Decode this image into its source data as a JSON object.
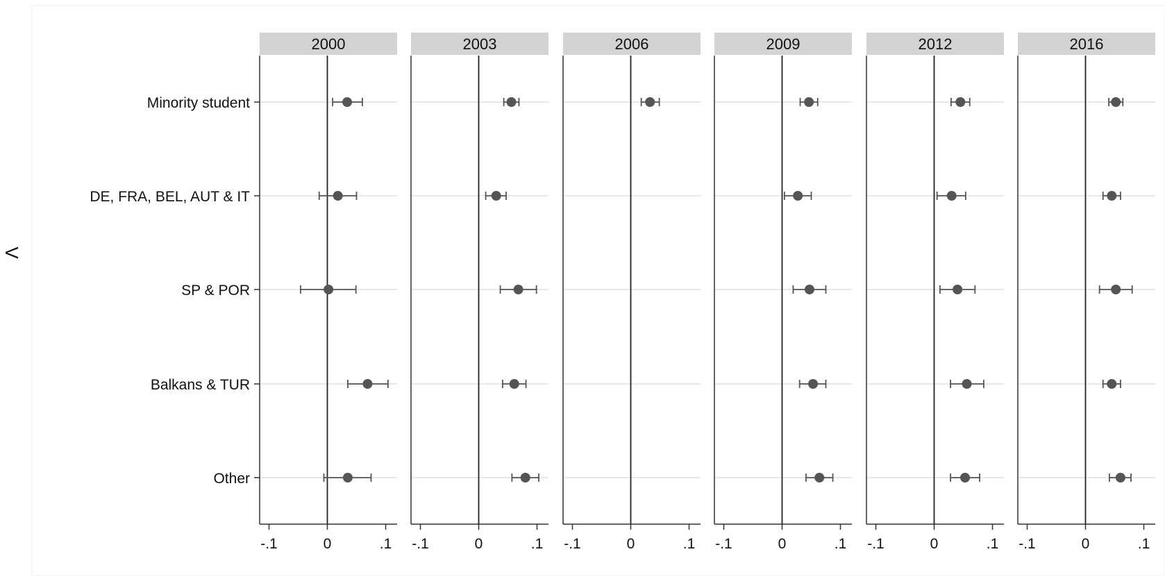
{
  "chart_data": {
    "type": "scatter",
    "chart_style": "coefficient plot with 95% confidence intervals, faceted by year",
    "ylabel": "Λ",
    "xlabel": "",
    "categories": [
      "Minority student",
      "DE, FRA, BEL, AUT & IT",
      "SP & POR",
      "Balkans & TUR",
      "Other"
    ],
    "xlim": [
      -0.12,
      0.12
    ],
    "x_ticks": [
      -0.1,
      0,
      0.1
    ],
    "x_tick_labels": [
      "-.1",
      "0",
      ".1"
    ],
    "reference_line": 0,
    "grid": "horizontal lines at categories",
    "colors": {
      "marker": "#555555",
      "panel_header": "#d3d3d3",
      "grid": "#e8e8e8",
      "axis": "#333333"
    },
    "panels": [
      {
        "year": "2000",
        "points": [
          {
            "category": "Minority student",
            "estimate": 0.034,
            "lower": 0.009,
            "upper": 0.06
          },
          {
            "category": "DE, FRA, BEL, AUT & IT",
            "estimate": 0.018,
            "lower": -0.014,
            "upper": 0.05
          },
          {
            "category": "SP & POR",
            "estimate": 0.002,
            "lower": -0.046,
            "upper": 0.049
          },
          {
            "category": "Balkans & TUR",
            "estimate": 0.069,
            "lower": 0.035,
            "upper": 0.104
          },
          {
            "category": "Other",
            "estimate": 0.035,
            "lower": -0.006,
            "upper": 0.075
          }
        ]
      },
      {
        "year": "2003",
        "points": [
          {
            "category": "Minority student",
            "estimate": 0.056,
            "lower": 0.043,
            "upper": 0.069
          },
          {
            "category": "DE, FRA, BEL, AUT & IT",
            "estimate": 0.03,
            "lower": 0.012,
            "upper": 0.047
          },
          {
            "category": "SP & POR",
            "estimate": 0.068,
            "lower": 0.037,
            "upper": 0.099
          },
          {
            "category": "Balkans & TUR",
            "estimate": 0.061,
            "lower": 0.041,
            "upper": 0.081
          },
          {
            "category": "Other",
            "estimate": 0.08,
            "lower": 0.057,
            "upper": 0.103
          }
        ]
      },
      {
        "year": "2006",
        "points": [
          {
            "category": "Minority student",
            "estimate": 0.033,
            "lower": 0.018,
            "upper": 0.049
          }
        ]
      },
      {
        "year": "2009",
        "points": [
          {
            "category": "Minority student",
            "estimate": 0.046,
            "lower": 0.031,
            "upper": 0.061
          },
          {
            "category": "DE, FRA, BEL, AUT & IT",
            "estimate": 0.027,
            "lower": 0.004,
            "upper": 0.05
          },
          {
            "category": "SP & POR",
            "estimate": 0.047,
            "lower": 0.019,
            "upper": 0.075
          },
          {
            "category": "Balkans & TUR",
            "estimate": 0.053,
            "lower": 0.03,
            "upper": 0.075
          },
          {
            "category": "Other",
            "estimate": 0.064,
            "lower": 0.041,
            "upper": 0.087
          }
        ]
      },
      {
        "year": "2012",
        "points": [
          {
            "category": "Minority student",
            "estimate": 0.045,
            "lower": 0.029,
            "upper": 0.061
          },
          {
            "category": "DE, FRA, BEL, AUT & IT",
            "estimate": 0.03,
            "lower": 0.005,
            "upper": 0.054
          },
          {
            "category": "SP & POR",
            "estimate": 0.04,
            "lower": 0.01,
            "upper": 0.07
          },
          {
            "category": "Balkans & TUR",
            "estimate": 0.056,
            "lower": 0.028,
            "upper": 0.085
          },
          {
            "category": "Other",
            "estimate": 0.053,
            "lower": 0.028,
            "upper": 0.078
          }
        ]
      },
      {
        "year": "2016",
        "points": [
          {
            "category": "Minority student",
            "estimate": 0.052,
            "lower": 0.04,
            "upper": 0.064
          },
          {
            "category": "DE, FRA, BEL, AUT & IT",
            "estimate": 0.045,
            "lower": 0.03,
            "upper": 0.06
          },
          {
            "category": "SP & POR",
            "estimate": 0.052,
            "lower": 0.024,
            "upper": 0.08
          },
          {
            "category": "Balkans & TUR",
            "estimate": 0.045,
            "lower": 0.03,
            "upper": 0.06
          },
          {
            "category": "Other",
            "estimate": 0.06,
            "lower": 0.041,
            "upper": 0.078
          }
        ]
      }
    ]
  }
}
